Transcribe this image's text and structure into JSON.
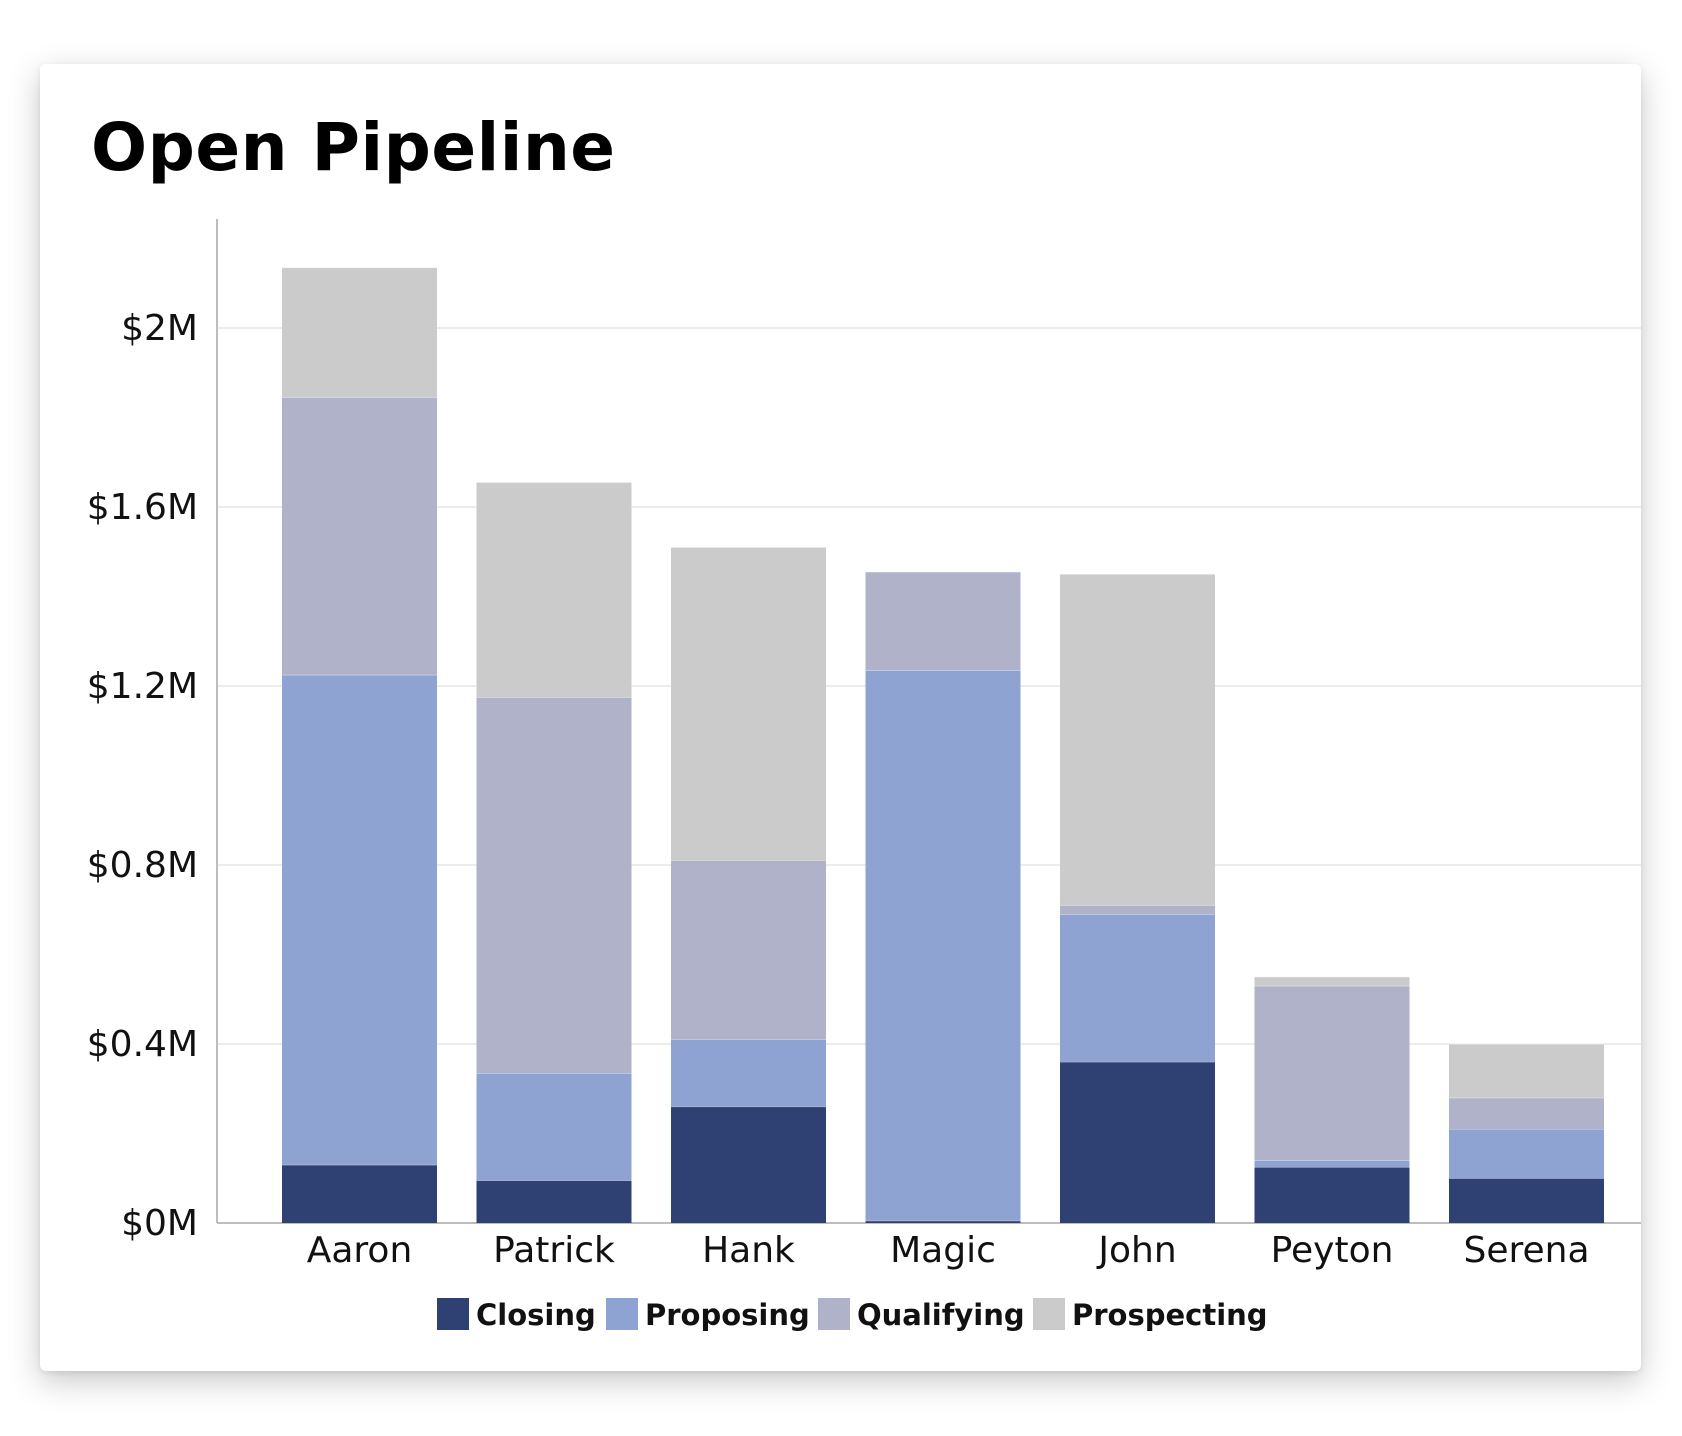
{
  "chart_data": {
    "type": "bar",
    "stacked": true,
    "title": "Open Pipeline",
    "xlabel": "",
    "ylabel": "",
    "categories": [
      "Aaron",
      "Patrick",
      "Hank",
      "Magic",
      "John",
      "Peyton",
      "Serena"
    ],
    "series": [
      {
        "name": "Closing",
        "color": "#2f4072",
        "values": [
          0.13,
          0.095,
          0.26,
          0.005,
          0.36,
          0.125,
          0.1
        ]
      },
      {
        "name": "Proposing",
        "color": "#8fa3d3",
        "values": [
          1.095,
          0.24,
          0.15,
          1.23,
          0.33,
          0.015,
          0.11
        ]
      },
      {
        "name": "Qualifying",
        "color": "#b0b2ca",
        "values": [
          0.62,
          0.84,
          0.4,
          0.22,
          0.02,
          0.39,
          0.07
        ]
      },
      {
        "name": "Prospecting",
        "color": "#cbcbcb",
        "values": [
          0.29,
          0.48,
          0.7,
          0.0,
          0.74,
          0.02,
          0.12
        ]
      }
    ],
    "yticks": [
      "$0M",
      "$0.4M",
      "$0.8M",
      "$1.2M",
      "$1.6M",
      "$2M"
    ],
    "ytick_values": [
      0,
      0.4,
      0.8,
      1.2,
      1.6,
      2.0
    ],
    "ylim": [
      0,
      2.25
    ],
    "grid": true,
    "legend_position": "bottom"
  }
}
